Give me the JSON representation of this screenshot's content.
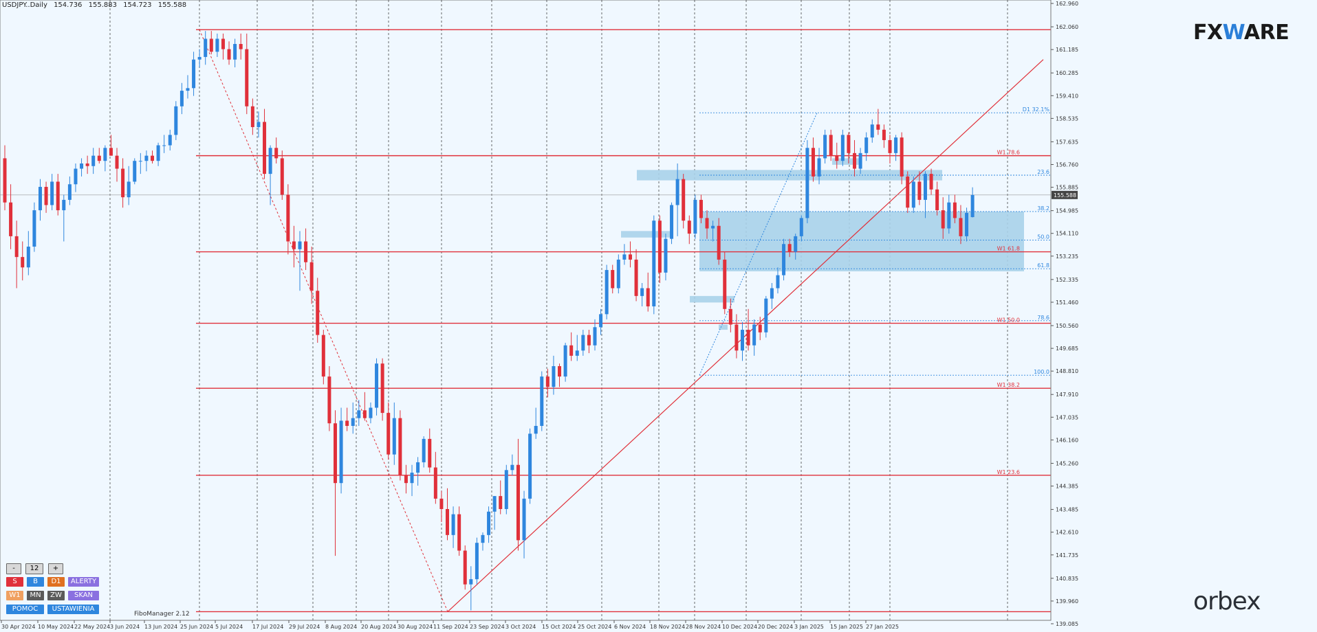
{
  "header": {
    "symbol": "USDJPY..Daily",
    "open": "154.736",
    "high": "155.883",
    "low": "154.723",
    "close": "155.588"
  },
  "brand": {
    "fxware_left": "FX",
    "fxware_w": "W",
    "fxware_right": "ARE",
    "orbex": "orbex"
  },
  "fibo_manager": "FiboManager 2.12",
  "panel": {
    "minus": "-",
    "period": "12",
    "plus": "+",
    "row1": [
      "S",
      "B",
      "D1",
      "ALERTY"
    ],
    "row2": [
      "W1",
      "MN",
      "ZW",
      "SKAN"
    ],
    "row3": [
      "POMOC",
      "USTAWIENIA"
    ]
  },
  "colors": {
    "bull": "#2e86de",
    "bear": "#e0303a",
    "level": "#e0303a",
    "fib_dotted": "#2e86de",
    "zone": "#a9d2ea",
    "bg": "#f0f8ff"
  },
  "chart_data": {
    "type": "candlestick",
    "title": "USDJPY..Daily",
    "ylim": [
      139.085,
      162.96
    ],
    "y_ticks": [
      "162.960",
      "162.060",
      "161.185",
      "160.285",
      "159.410",
      "158.535",
      "157.635",
      "156.760",
      "155.885",
      "154.985",
      "154.110",
      "153.235",
      "152.335",
      "151.460",
      "150.560",
      "149.685",
      "148.810",
      "147.910",
      "147.035",
      "146.160",
      "145.260",
      "144.385",
      "143.485",
      "142.610",
      "141.735",
      "140.835",
      "139.960",
      "139.085"
    ],
    "x_ticks": [
      "30 Apr 2024",
      "10 May 2024",
      "22 May 2024",
      "3 Jun 2024",
      "13 Jun 2024",
      "25 Jun 2024",
      "5 Jul 2024",
      "17 Jul 2024",
      "29 Jul 2024",
      "8 Aug 2024",
      "20 Aug 2024",
      "30 Aug 2024",
      "11 Sep 2024",
      "23 Sep 2024",
      "3 Oct 2024",
      "15 Oct 2024",
      "25 Oct 2024",
      "6 Nov 2024",
      "18 Nov 2024",
      "28 Nov 2024",
      "10 Dec 2024",
      "20 Dec 2024",
      "3 Jan 2025",
      "15 Jan 2025",
      "27 Jan 2025"
    ],
    "current_price": "155.588",
    "horizontal_levels": [
      {
        "price": 161.95,
        "label": ""
      },
      {
        "price": 157.1,
        "label": "W1 78.6"
      },
      {
        "price": 153.4,
        "label": "W1 61.8"
      },
      {
        "price": 150.65,
        "label": "W1 50.0"
      },
      {
        "price": 148.15,
        "label": "W1 38.2"
      },
      {
        "price": 144.8,
        "label": "W1 23.6"
      },
      {
        "price": 139.55,
        "label": ""
      }
    ],
    "fib_levels": [
      {
        "price": 158.75,
        "label": "D1 32.1%"
      },
      {
        "price": 156.35,
        "label": "23.6"
      },
      {
        "price": 154.95,
        "label": "38.2"
      },
      {
        "price": 153.85,
        "label": "50.0"
      },
      {
        "price": 152.75,
        "label": "61.8"
      },
      {
        "price": 150.75,
        "label": "78.6"
      },
      {
        "price": 148.65,
        "label": "100.0"
      }
    ],
    "candles": [
      {
        "o": 157.0,
        "h": 157.5,
        "l": 155.0,
        "c": 155.3
      },
      {
        "o": 155.3,
        "h": 156.0,
        "l": 153.5,
        "c": 154.0
      },
      {
        "o": 154.0,
        "h": 154.6,
        "l": 152.0,
        "c": 153.2
      },
      {
        "o": 153.2,
        "h": 153.8,
        "l": 152.3,
        "c": 152.8
      },
      {
        "o": 152.8,
        "h": 154.2,
        "l": 152.5,
        "c": 153.6
      },
      {
        "o": 153.6,
        "h": 155.3,
        "l": 153.4,
        "c": 155.0
      },
      {
        "o": 155.0,
        "h": 156.2,
        "l": 154.6,
        "c": 155.9
      },
      {
        "o": 155.9,
        "h": 156.1,
        "l": 154.9,
        "c": 155.2
      },
      {
        "o": 155.2,
        "h": 156.4,
        "l": 155.0,
        "c": 156.1
      },
      {
        "o": 156.1,
        "h": 156.4,
        "l": 154.8,
        "c": 155.0
      },
      {
        "o": 155.0,
        "h": 155.6,
        "l": 153.8,
        "c": 155.4
      },
      {
        "o": 155.4,
        "h": 156.3,
        "l": 155.2,
        "c": 156.0
      },
      {
        "o": 156.0,
        "h": 156.8,
        "l": 155.7,
        "c": 156.6
      },
      {
        "o": 156.6,
        "h": 157.0,
        "l": 156.3,
        "c": 156.8
      },
      {
        "o": 156.8,
        "h": 157.1,
        "l": 156.4,
        "c": 156.7
      },
      {
        "o": 156.7,
        "h": 157.4,
        "l": 156.4,
        "c": 157.1
      },
      {
        "o": 157.1,
        "h": 157.4,
        "l": 156.8,
        "c": 156.9
      },
      {
        "o": 156.9,
        "h": 157.5,
        "l": 156.5,
        "c": 157.4
      },
      {
        "o": 157.4,
        "h": 157.9,
        "l": 157.1,
        "c": 157.1
      },
      {
        "o": 157.1,
        "h": 157.4,
        "l": 156.1,
        "c": 156.6
      },
      {
        "o": 156.6,
        "h": 157.0,
        "l": 155.1,
        "c": 155.5
      },
      {
        "o": 155.5,
        "h": 156.7,
        "l": 155.2,
        "c": 156.1
      },
      {
        "o": 156.1,
        "h": 157.0,
        "l": 156.0,
        "c": 156.9
      },
      {
        "o": 156.9,
        "h": 157.2,
        "l": 156.4,
        "c": 156.9
      },
      {
        "o": 156.9,
        "h": 157.3,
        "l": 156.5,
        "c": 157.1
      },
      {
        "o": 157.1,
        "h": 157.3,
        "l": 156.8,
        "c": 156.9
      },
      {
        "o": 156.9,
        "h": 157.6,
        "l": 156.7,
        "c": 157.5
      },
      {
        "o": 157.5,
        "h": 157.9,
        "l": 157.2,
        "c": 157.5
      },
      {
        "o": 157.5,
        "h": 158.1,
        "l": 157.3,
        "c": 157.9
      },
      {
        "o": 157.9,
        "h": 159.2,
        "l": 157.7,
        "c": 159.0
      },
      {
        "o": 159.0,
        "h": 159.9,
        "l": 158.7,
        "c": 159.6
      },
      {
        "o": 159.6,
        "h": 160.2,
        "l": 159.3,
        "c": 159.7
      },
      {
        "o": 159.7,
        "h": 161.1,
        "l": 159.4,
        "c": 160.8
      },
      {
        "o": 160.8,
        "h": 161.2,
        "l": 160.5,
        "c": 160.9
      },
      {
        "o": 160.9,
        "h": 161.9,
        "l": 160.6,
        "c": 161.6
      },
      {
        "o": 161.6,
        "h": 161.9,
        "l": 161.0,
        "c": 161.1
      },
      {
        "o": 161.1,
        "h": 161.8,
        "l": 160.9,
        "c": 161.6
      },
      {
        "o": 161.6,
        "h": 161.8,
        "l": 160.8,
        "c": 161.2
      },
      {
        "o": 161.2,
        "h": 161.5,
        "l": 160.6,
        "c": 160.8
      },
      {
        "o": 160.8,
        "h": 161.6,
        "l": 160.5,
        "c": 161.4
      },
      {
        "o": 161.4,
        "h": 161.8,
        "l": 160.8,
        "c": 161.2
      },
      {
        "o": 161.2,
        "h": 161.8,
        "l": 158.7,
        "c": 159.0
      },
      {
        "o": 159.0,
        "h": 159.3,
        "l": 157.9,
        "c": 158.2
      },
      {
        "o": 158.2,
        "h": 158.8,
        "l": 157.8,
        "c": 158.4
      },
      {
        "o": 158.4,
        "h": 158.9,
        "l": 156.2,
        "c": 156.4
      },
      {
        "o": 156.4,
        "h": 157.5,
        "l": 155.2,
        "c": 157.4
      },
      {
        "o": 157.4,
        "h": 157.8,
        "l": 156.8,
        "c": 157.0
      },
      {
        "o": 157.0,
        "h": 157.3,
        "l": 155.4,
        "c": 155.6
      },
      {
        "o": 155.6,
        "h": 156.0,
        "l": 153.3,
        "c": 153.8
      },
      {
        "o": 153.8,
        "h": 154.4,
        "l": 152.8,
        "c": 153.5
      },
      {
        "o": 153.5,
        "h": 154.2,
        "l": 151.9,
        "c": 153.8
      },
      {
        "o": 153.8,
        "h": 154.3,
        "l": 152.7,
        "c": 153.0
      },
      {
        "o": 153.0,
        "h": 153.6,
        "l": 151.4,
        "c": 151.9
      },
      {
        "o": 151.9,
        "h": 152.4,
        "l": 149.9,
        "c": 150.2
      },
      {
        "o": 150.2,
        "h": 150.4,
        "l": 148.3,
        "c": 148.6
      },
      {
        "o": 148.6,
        "h": 149.0,
        "l": 146.5,
        "c": 146.8
      },
      {
        "o": 146.8,
        "h": 147.3,
        "l": 141.7,
        "c": 144.5
      },
      {
        "o": 144.5,
        "h": 147.4,
        "l": 144.1,
        "c": 146.9
      },
      {
        "o": 146.9,
        "h": 147.4,
        "l": 146.5,
        "c": 146.7
      },
      {
        "o": 146.7,
        "h": 147.6,
        "l": 146.4,
        "c": 147.0
      },
      {
        "o": 147.0,
        "h": 147.7,
        "l": 146.7,
        "c": 147.3
      },
      {
        "o": 147.3,
        "h": 148.0,
        "l": 146.9,
        "c": 147.0
      },
      {
        "o": 147.0,
        "h": 147.6,
        "l": 146.8,
        "c": 147.4
      },
      {
        "o": 147.4,
        "h": 149.3,
        "l": 147.1,
        "c": 149.1
      },
      {
        "o": 149.1,
        "h": 149.3,
        "l": 146.9,
        "c": 147.2
      },
      {
        "o": 147.2,
        "h": 147.6,
        "l": 145.4,
        "c": 145.6
      },
      {
        "o": 145.6,
        "h": 147.6,
        "l": 145.2,
        "c": 147.0
      },
      {
        "o": 147.0,
        "h": 147.3,
        "l": 144.6,
        "c": 144.8
      },
      {
        "o": 144.8,
        "h": 145.2,
        "l": 144.1,
        "c": 144.5
      },
      {
        "o": 144.5,
        "h": 145.2,
        "l": 144.0,
        "c": 144.9
      },
      {
        "o": 144.9,
        "h": 145.5,
        "l": 144.4,
        "c": 145.3
      },
      {
        "o": 145.3,
        "h": 146.3,
        "l": 145.1,
        "c": 146.2
      },
      {
        "o": 146.2,
        "h": 146.6,
        "l": 144.9,
        "c": 145.1
      },
      {
        "o": 145.1,
        "h": 145.7,
        "l": 143.7,
        "c": 143.9
      },
      {
        "o": 143.9,
        "h": 144.2,
        "l": 143.0,
        "c": 143.5
      },
      {
        "o": 143.5,
        "h": 144.3,
        "l": 142.3,
        "c": 142.5
      },
      {
        "o": 142.5,
        "h": 143.6,
        "l": 142.0,
        "c": 143.3
      },
      {
        "o": 143.3,
        "h": 143.6,
        "l": 141.7,
        "c": 141.9
      },
      {
        "o": 141.9,
        "h": 142.1,
        "l": 140.4,
        "c": 140.6
      },
      {
        "o": 140.6,
        "h": 141.3,
        "l": 139.6,
        "c": 140.8
      },
      {
        "o": 140.8,
        "h": 142.4,
        "l": 140.6,
        "c": 142.2
      },
      {
        "o": 142.2,
        "h": 142.6,
        "l": 141.9,
        "c": 142.5
      },
      {
        "o": 142.5,
        "h": 143.6,
        "l": 142.2,
        "c": 143.4
      },
      {
        "o": 143.4,
        "h": 144.0,
        "l": 142.7,
        "c": 144.0
      },
      {
        "o": 144.0,
        "h": 144.6,
        "l": 143.3,
        "c": 143.5
      },
      {
        "o": 143.5,
        "h": 145.2,
        "l": 143.3,
        "c": 145.0
      },
      {
        "o": 145.0,
        "h": 145.6,
        "l": 144.8,
        "c": 145.2
      },
      {
        "o": 145.2,
        "h": 146.2,
        "l": 141.9,
        "c": 142.3
      },
      {
        "o": 142.3,
        "h": 144.2,
        "l": 141.6,
        "c": 143.9
      },
      {
        "o": 143.9,
        "h": 146.6,
        "l": 143.7,
        "c": 146.4
      },
      {
        "o": 146.4,
        "h": 147.4,
        "l": 146.2,
        "c": 146.7
      },
      {
        "o": 146.7,
        "h": 148.8,
        "l": 146.5,
        "c": 148.6
      },
      {
        "o": 148.6,
        "h": 148.9,
        "l": 147.8,
        "c": 148.2
      },
      {
        "o": 148.2,
        "h": 149.4,
        "l": 147.9,
        "c": 149.0
      },
      {
        "o": 149.0,
        "h": 149.1,
        "l": 148.2,
        "c": 148.6
      },
      {
        "o": 148.6,
        "h": 149.9,
        "l": 148.4,
        "c": 149.8
      },
      {
        "o": 149.8,
        "h": 150.3,
        "l": 149.2,
        "c": 149.4
      },
      {
        "o": 149.4,
        "h": 150.2,
        "l": 149.2,
        "c": 149.6
      },
      {
        "o": 149.6,
        "h": 150.4,
        "l": 149.4,
        "c": 150.2
      },
      {
        "o": 150.2,
        "h": 150.4,
        "l": 149.5,
        "c": 149.8
      },
      {
        "o": 149.8,
        "h": 150.8,
        "l": 149.6,
        "c": 150.5
      },
      {
        "o": 150.5,
        "h": 151.2,
        "l": 150.2,
        "c": 151.0
      },
      {
        "o": 151.0,
        "h": 152.9,
        "l": 150.8,
        "c": 152.7
      },
      {
        "o": 152.7,
        "h": 152.9,
        "l": 151.8,
        "c": 152.0
      },
      {
        "o": 152.0,
        "h": 153.3,
        "l": 151.8,
        "c": 153.1
      },
      {
        "o": 153.1,
        "h": 153.7,
        "l": 152.9,
        "c": 153.3
      },
      {
        "o": 153.3,
        "h": 153.8,
        "l": 152.8,
        "c": 153.1
      },
      {
        "o": 153.1,
        "h": 153.5,
        "l": 151.5,
        "c": 151.7
      },
      {
        "o": 151.7,
        "h": 152.2,
        "l": 151.3,
        "c": 152.0
      },
      {
        "o": 152.0,
        "h": 152.6,
        "l": 151.1,
        "c": 151.3
      },
      {
        "o": 151.3,
        "h": 154.8,
        "l": 151.0,
        "c": 154.6
      },
      {
        "o": 154.6,
        "h": 154.8,
        "l": 152.2,
        "c": 152.6
      },
      {
        "o": 152.6,
        "h": 154.1,
        "l": 152.3,
        "c": 153.9
      },
      {
        "o": 153.9,
        "h": 155.3,
        "l": 153.7,
        "c": 155.2
      },
      {
        "o": 155.2,
        "h": 156.8,
        "l": 154.0,
        "c": 156.2
      },
      {
        "o": 156.2,
        "h": 156.4,
        "l": 154.3,
        "c": 154.6
      },
      {
        "o": 154.6,
        "h": 154.8,
        "l": 153.7,
        "c": 154.1
      },
      {
        "o": 154.1,
        "h": 155.6,
        "l": 153.9,
        "c": 155.4
      },
      {
        "o": 155.4,
        "h": 155.6,
        "l": 154.5,
        "c": 154.7
      },
      {
        "o": 154.7,
        "h": 155.0,
        "l": 153.9,
        "c": 154.3
      },
      {
        "o": 154.3,
        "h": 154.6,
        "l": 153.8,
        "c": 154.4
      },
      {
        "o": 154.4,
        "h": 154.7,
        "l": 152.9,
        "c": 153.1
      },
      {
        "o": 153.1,
        "h": 153.4,
        "l": 151.0,
        "c": 151.2
      },
      {
        "o": 151.2,
        "h": 151.6,
        "l": 150.3,
        "c": 150.6
      },
      {
        "o": 150.6,
        "h": 151.0,
        "l": 149.3,
        "c": 149.6
      },
      {
        "o": 149.6,
        "h": 150.7,
        "l": 149.2,
        "c": 150.4
      },
      {
        "o": 150.4,
        "h": 151.2,
        "l": 149.6,
        "c": 149.8
      },
      {
        "o": 149.8,
        "h": 150.8,
        "l": 149.4,
        "c": 150.6
      },
      {
        "o": 150.6,
        "h": 150.9,
        "l": 150.0,
        "c": 150.3
      },
      {
        "o": 150.3,
        "h": 151.7,
        "l": 150.1,
        "c": 151.6
      },
      {
        "o": 151.6,
        "h": 152.2,
        "l": 151.2,
        "c": 152.0
      },
      {
        "o": 152.0,
        "h": 152.8,
        "l": 151.8,
        "c": 152.5
      },
      {
        "o": 152.5,
        "h": 153.9,
        "l": 152.3,
        "c": 153.7
      },
      {
        "o": 153.7,
        "h": 153.9,
        "l": 153.2,
        "c": 153.4
      },
      {
        "o": 153.4,
        "h": 154.1,
        "l": 153.1,
        "c": 154.0
      },
      {
        "o": 154.0,
        "h": 154.8,
        "l": 153.8,
        "c": 154.7
      },
      {
        "o": 154.7,
        "h": 157.7,
        "l": 154.5,
        "c": 157.4
      },
      {
        "o": 157.4,
        "h": 157.8,
        "l": 156.1,
        "c": 156.3
      },
      {
        "o": 156.3,
        "h": 157.4,
        "l": 156.0,
        "c": 157.0
      },
      {
        "o": 157.0,
        "h": 158.1,
        "l": 156.8,
        "c": 157.9
      },
      {
        "o": 157.9,
        "h": 158.1,
        "l": 156.9,
        "c": 157.1
      },
      {
        "o": 157.1,
        "h": 157.6,
        "l": 156.6,
        "c": 156.9
      },
      {
        "o": 156.9,
        "h": 158.1,
        "l": 156.7,
        "c": 157.9
      },
      {
        "o": 157.9,
        "h": 158.0,
        "l": 156.8,
        "c": 157.2
      },
      {
        "o": 157.2,
        "h": 157.7,
        "l": 156.3,
        "c": 156.6
      },
      {
        "o": 156.6,
        "h": 157.4,
        "l": 156.4,
        "c": 157.2
      },
      {
        "o": 157.2,
        "h": 158.0,
        "l": 156.9,
        "c": 157.8
      },
      {
        "o": 157.8,
        "h": 158.5,
        "l": 157.6,
        "c": 158.3
      },
      {
        "o": 158.3,
        "h": 158.9,
        "l": 157.9,
        "c": 158.1
      },
      {
        "o": 158.1,
        "h": 158.3,
        "l": 157.4,
        "c": 157.7
      },
      {
        "o": 157.7,
        "h": 157.9,
        "l": 156.8,
        "c": 157.2
      },
      {
        "o": 157.2,
        "h": 157.9,
        "l": 156.9,
        "c": 157.8
      },
      {
        "o": 157.8,
        "h": 158.0,
        "l": 156.0,
        "c": 156.3
      },
      {
        "o": 156.3,
        "h": 156.5,
        "l": 154.9,
        "c": 155.1
      },
      {
        "o": 155.1,
        "h": 156.3,
        "l": 154.9,
        "c": 156.1
      },
      {
        "o": 156.1,
        "h": 156.5,
        "l": 155.2,
        "c": 155.4
      },
      {
        "o": 155.4,
        "h": 156.5,
        "l": 154.7,
        "c": 156.4
      },
      {
        "o": 156.4,
        "h": 156.6,
        "l": 155.6,
        "c": 155.8
      },
      {
        "o": 155.8,
        "h": 156.1,
        "l": 154.8,
        "c": 155.0
      },
      {
        "o": 155.0,
        "h": 155.5,
        "l": 153.9,
        "c": 154.3
      },
      {
        "o": 154.3,
        "h": 155.6,
        "l": 154.1,
        "c": 155.3
      },
      {
        "o": 155.3,
        "h": 155.6,
        "l": 154.5,
        "c": 154.7
      },
      {
        "o": 154.7,
        "h": 155.2,
        "l": 153.7,
        "c": 154.0
      },
      {
        "o": 154.0,
        "h": 155.1,
        "l": 153.8,
        "c": 154.9
      },
      {
        "o": 154.736,
        "h": 155.883,
        "l": 154.723,
        "c": 155.588
      }
    ]
  }
}
